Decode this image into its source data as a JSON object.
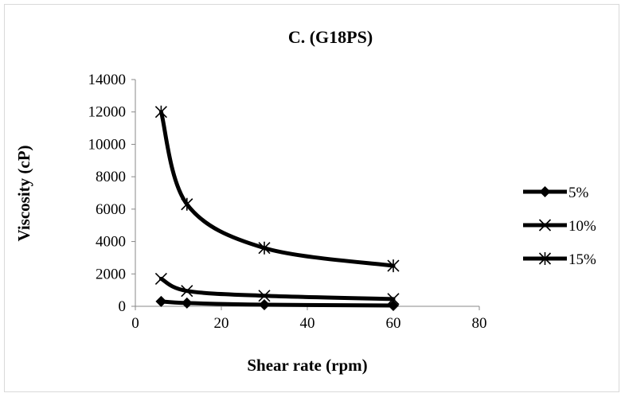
{
  "chart_data": {
    "type": "line",
    "title": "C. (G18PS)",
    "xlabel": "Shear rate (rpm)",
    "ylabel": "Viscosity (cP)",
    "xlim": [
      0,
      80
    ],
    "ylim": [
      0,
      14000
    ],
    "xticks": [
      0,
      20,
      40,
      60,
      80
    ],
    "yticks": [
      0,
      2000,
      4000,
      6000,
      8000,
      10000,
      12000,
      14000
    ],
    "x": [
      6,
      12,
      30,
      60
    ],
    "grid": false,
    "legend_position": "right",
    "series": [
      {
        "name": "5%",
        "marker": "diamond",
        "values": [
          300,
          200,
          100,
          50
        ]
      },
      {
        "name": "10%",
        "marker": "x",
        "values": [
          1700,
          950,
          650,
          450
        ]
      },
      {
        "name": "15%",
        "marker": "star",
        "values": [
          12000,
          6300,
          3600,
          2500
        ]
      }
    ],
    "line_color": "#000000"
  }
}
